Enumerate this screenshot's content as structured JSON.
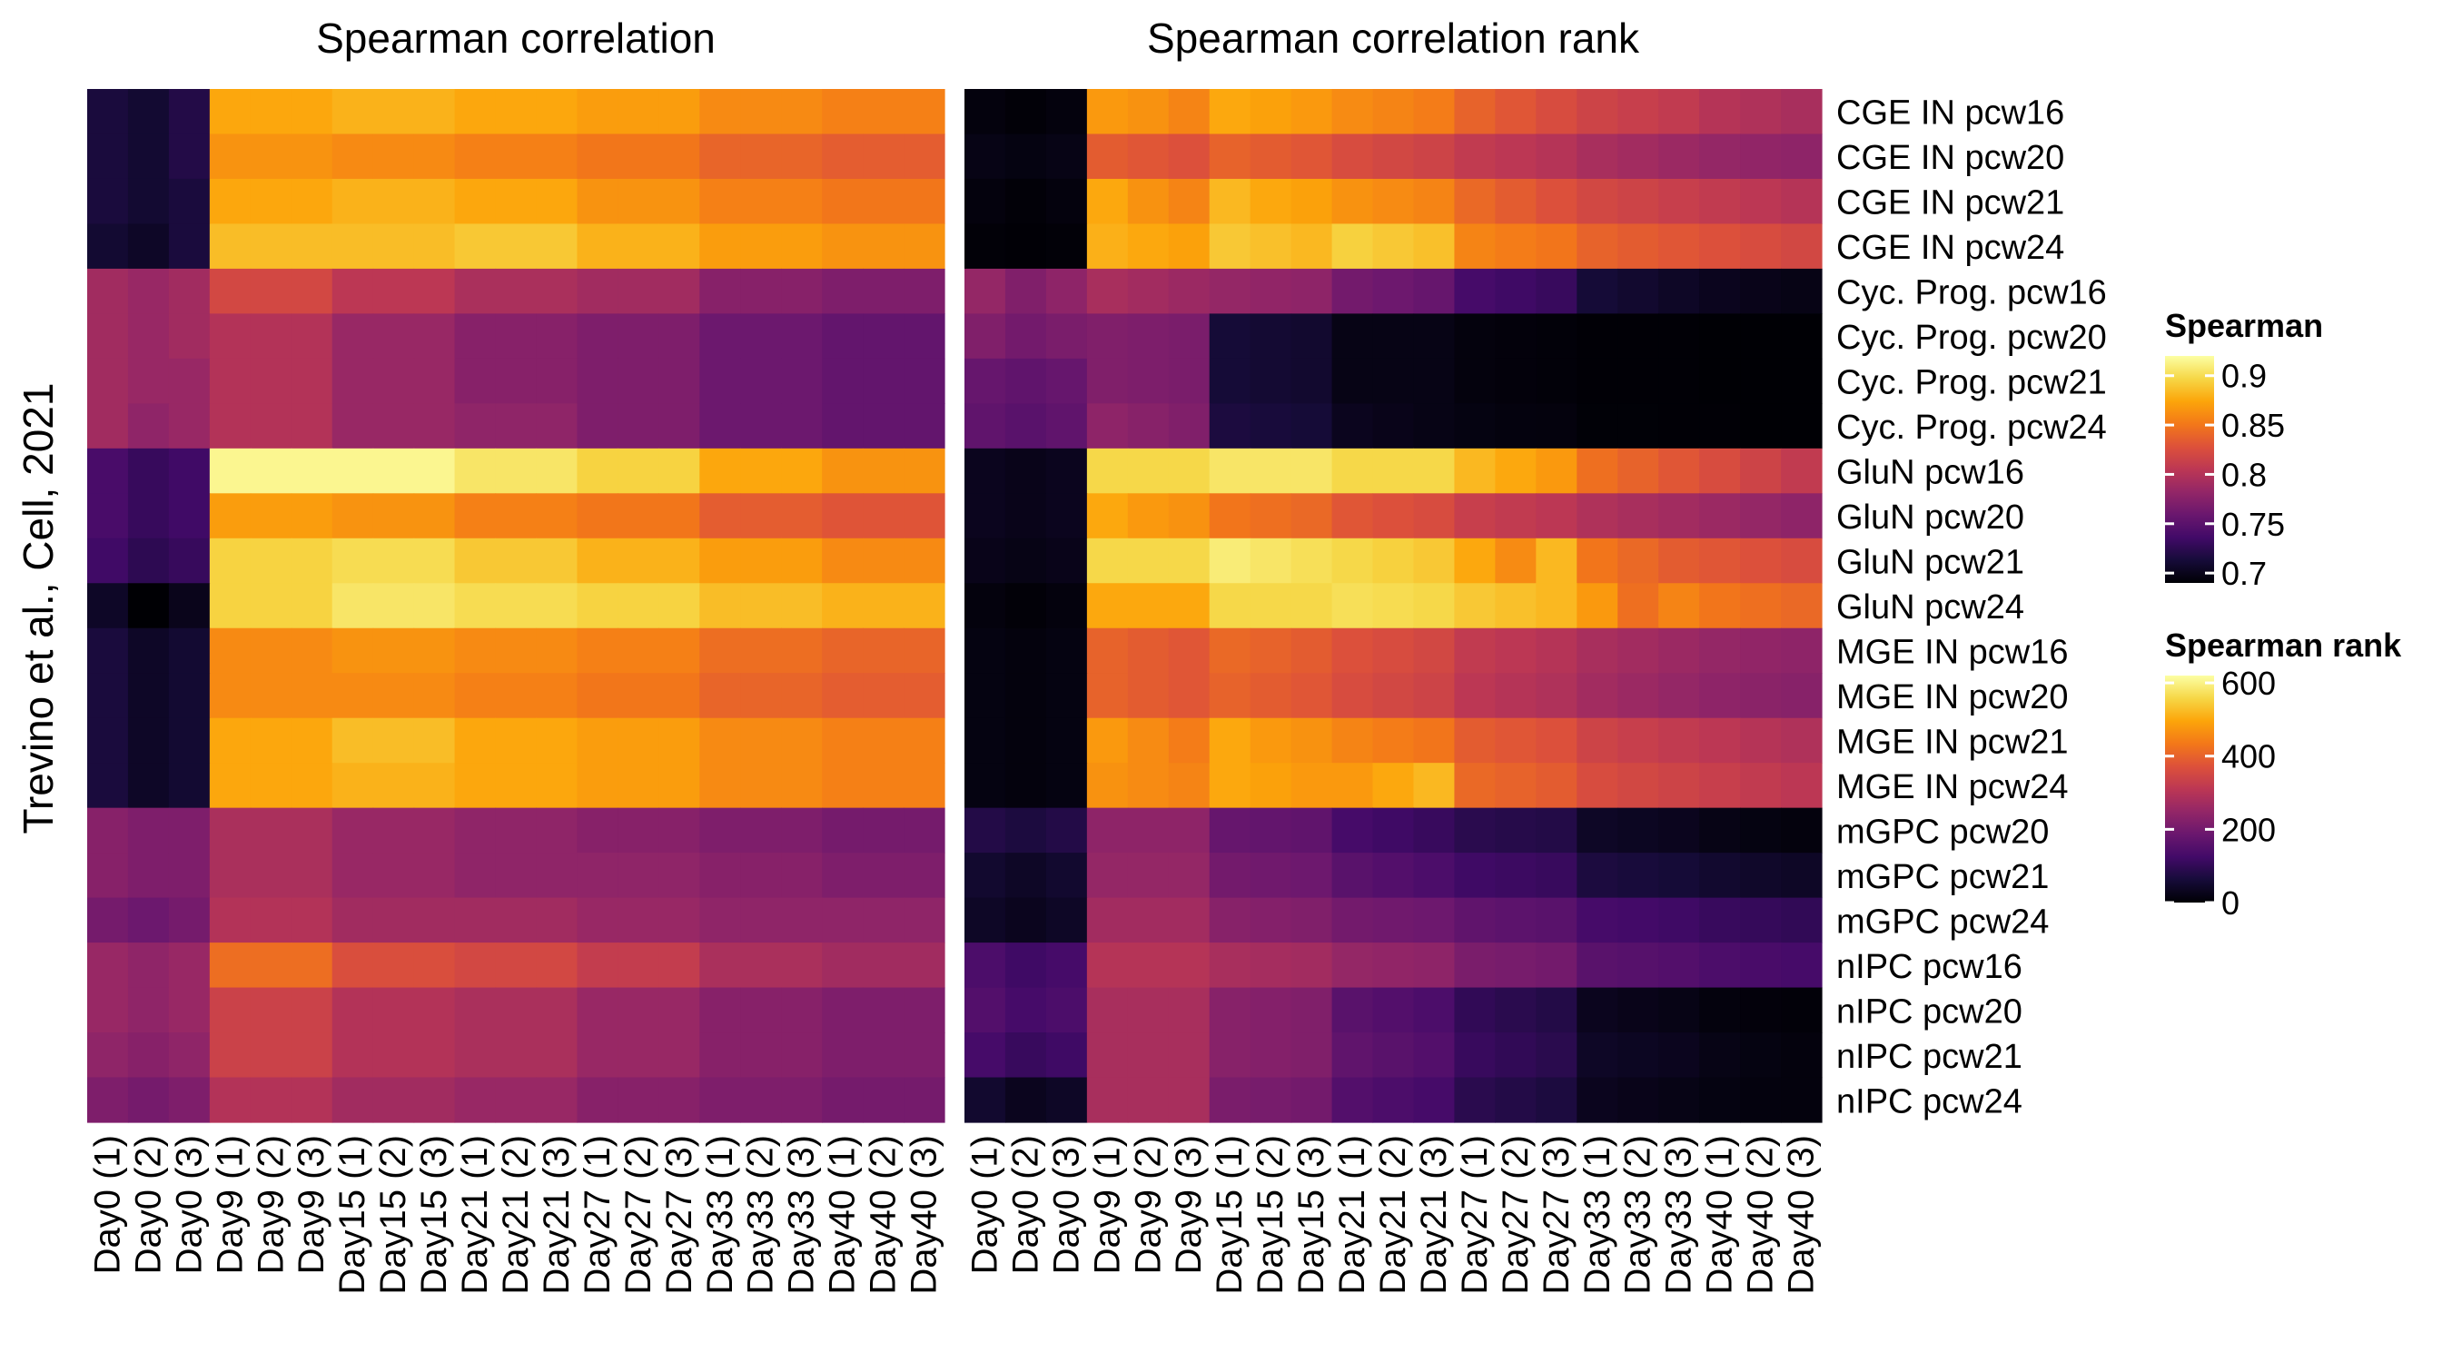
{
  "chart_data": {
    "type": "heatmap",
    "ylabel": "Trevino et al., Cell, 2021",
    "columns": [
      "Day0 (1)",
      "Day0 (2)",
      "Day0 (3)",
      "Day9 (1)",
      "Day9 (2)",
      "Day9 (3)",
      "Day15 (1)",
      "Day15 (2)",
      "Day15 (3)",
      "Day21 (1)",
      "Day21 (2)",
      "Day21 (3)",
      "Day27 (1)",
      "Day27 (2)",
      "Day27 (3)",
      "Day33 (1)",
      "Day33 (2)",
      "Day33 (3)",
      "Day40 (1)",
      "Day40 (2)",
      "Day40 (3)"
    ],
    "rows": [
      "CGE IN pcw16",
      "CGE IN pcw20",
      "CGE IN pcw21",
      "CGE IN pcw24",
      "Cyc. Prog. pcw16",
      "Cyc. Prog. pcw20",
      "Cyc. Prog. pcw21",
      "Cyc. Prog. pcw24",
      "GluN pcw16",
      "GluN pcw20",
      "GluN pcw21",
      "GluN pcw24",
      "MGE IN pcw16",
      "MGE IN pcw20",
      "MGE IN pcw21",
      "MGE IN pcw24",
      "mGPC pcw20",
      "mGPC pcw21",
      "mGPC pcw24",
      "nIPC pcw16",
      "nIPC pcw20",
      "nIPC pcw21",
      "nIPC pcw24"
    ],
    "panels": [
      {
        "title": "Spearman correlation",
        "legend_title": "Spearman",
        "range": [
          0.69,
          0.92
        ],
        "legend_ticks": [
          0.7,
          0.75,
          0.8,
          0.85,
          0.9
        ],
        "values": [
          [
            0.715,
            0.71,
            0.72,
            0.875,
            0.875,
            0.875,
            0.88,
            0.88,
            0.88,
            0.875,
            0.875,
            0.875,
            0.87,
            0.87,
            0.87,
            0.86,
            0.86,
            0.86,
            0.855,
            0.855,
            0.855
          ],
          [
            0.715,
            0.71,
            0.72,
            0.865,
            0.865,
            0.865,
            0.86,
            0.86,
            0.86,
            0.855,
            0.855,
            0.855,
            0.85,
            0.85,
            0.85,
            0.84,
            0.84,
            0.84,
            0.835,
            0.835,
            0.835
          ],
          [
            0.715,
            0.71,
            0.715,
            0.875,
            0.875,
            0.875,
            0.88,
            0.88,
            0.88,
            0.875,
            0.875,
            0.875,
            0.865,
            0.865,
            0.865,
            0.855,
            0.855,
            0.855,
            0.85,
            0.85,
            0.85
          ],
          [
            0.71,
            0.705,
            0.715,
            0.885,
            0.885,
            0.885,
            0.885,
            0.885,
            0.885,
            0.89,
            0.89,
            0.89,
            0.88,
            0.88,
            0.88,
            0.87,
            0.87,
            0.87,
            0.865,
            0.865,
            0.865
          ],
          [
            0.79,
            0.785,
            0.79,
            0.82,
            0.82,
            0.82,
            0.805,
            0.805,
            0.805,
            0.795,
            0.795,
            0.795,
            0.79,
            0.79,
            0.79,
            0.775,
            0.775,
            0.775,
            0.77,
            0.77,
            0.77
          ],
          [
            0.79,
            0.785,
            0.79,
            0.8,
            0.8,
            0.8,
            0.785,
            0.785,
            0.785,
            0.775,
            0.775,
            0.775,
            0.77,
            0.77,
            0.77,
            0.76,
            0.76,
            0.76,
            0.755,
            0.755,
            0.755
          ],
          [
            0.79,
            0.785,
            0.785,
            0.8,
            0.8,
            0.8,
            0.785,
            0.785,
            0.785,
            0.775,
            0.775,
            0.775,
            0.77,
            0.77,
            0.77,
            0.76,
            0.76,
            0.76,
            0.755,
            0.755,
            0.755
          ],
          [
            0.79,
            0.78,
            0.785,
            0.8,
            0.8,
            0.8,
            0.785,
            0.785,
            0.785,
            0.78,
            0.78,
            0.78,
            0.77,
            0.77,
            0.77,
            0.76,
            0.76,
            0.76,
            0.755,
            0.755,
            0.755
          ],
          [
            0.74,
            0.73,
            0.735,
            0.915,
            0.915,
            0.915,
            0.915,
            0.915,
            0.915,
            0.905,
            0.905,
            0.905,
            0.895,
            0.895,
            0.895,
            0.875,
            0.875,
            0.875,
            0.865,
            0.865,
            0.865
          ],
          [
            0.74,
            0.73,
            0.735,
            0.87,
            0.87,
            0.87,
            0.865,
            0.865,
            0.865,
            0.855,
            0.855,
            0.855,
            0.85,
            0.85,
            0.85,
            0.835,
            0.835,
            0.835,
            0.83,
            0.83,
            0.83
          ],
          [
            0.735,
            0.725,
            0.73,
            0.895,
            0.895,
            0.895,
            0.9,
            0.9,
            0.9,
            0.89,
            0.89,
            0.89,
            0.88,
            0.88,
            0.88,
            0.87,
            0.87,
            0.87,
            0.86,
            0.86,
            0.86
          ],
          [
            0.705,
            0.69,
            0.7,
            0.895,
            0.895,
            0.895,
            0.905,
            0.905,
            0.905,
            0.9,
            0.9,
            0.9,
            0.895,
            0.895,
            0.895,
            0.885,
            0.885,
            0.885,
            0.88,
            0.88,
            0.88
          ],
          [
            0.715,
            0.705,
            0.71,
            0.86,
            0.86,
            0.86,
            0.865,
            0.865,
            0.865,
            0.86,
            0.86,
            0.86,
            0.855,
            0.855,
            0.855,
            0.845,
            0.845,
            0.845,
            0.84,
            0.84,
            0.84
          ],
          [
            0.715,
            0.705,
            0.71,
            0.86,
            0.86,
            0.86,
            0.86,
            0.86,
            0.86,
            0.855,
            0.855,
            0.855,
            0.85,
            0.85,
            0.85,
            0.84,
            0.84,
            0.84,
            0.835,
            0.835,
            0.835
          ],
          [
            0.715,
            0.705,
            0.71,
            0.875,
            0.875,
            0.875,
            0.885,
            0.885,
            0.885,
            0.875,
            0.875,
            0.875,
            0.87,
            0.87,
            0.87,
            0.86,
            0.86,
            0.86,
            0.855,
            0.855,
            0.855
          ],
          [
            0.715,
            0.705,
            0.71,
            0.875,
            0.875,
            0.875,
            0.88,
            0.88,
            0.88,
            0.875,
            0.875,
            0.875,
            0.87,
            0.87,
            0.87,
            0.86,
            0.86,
            0.86,
            0.855,
            0.855,
            0.855
          ],
          [
            0.775,
            0.77,
            0.77,
            0.795,
            0.795,
            0.795,
            0.785,
            0.785,
            0.785,
            0.78,
            0.78,
            0.78,
            0.775,
            0.775,
            0.775,
            0.77,
            0.77,
            0.77,
            0.765,
            0.765,
            0.765
          ],
          [
            0.775,
            0.77,
            0.77,
            0.795,
            0.795,
            0.795,
            0.785,
            0.785,
            0.785,
            0.78,
            0.78,
            0.78,
            0.78,
            0.78,
            0.78,
            0.775,
            0.775,
            0.775,
            0.77,
            0.77,
            0.77
          ],
          [
            0.765,
            0.76,
            0.765,
            0.8,
            0.8,
            0.8,
            0.79,
            0.79,
            0.79,
            0.79,
            0.79,
            0.79,
            0.785,
            0.785,
            0.785,
            0.78,
            0.78,
            0.78,
            0.78,
            0.78,
            0.78
          ],
          [
            0.785,
            0.78,
            0.785,
            0.845,
            0.845,
            0.845,
            0.825,
            0.825,
            0.825,
            0.82,
            0.82,
            0.82,
            0.81,
            0.81,
            0.81,
            0.795,
            0.795,
            0.795,
            0.79,
            0.79,
            0.79
          ],
          [
            0.785,
            0.78,
            0.785,
            0.815,
            0.815,
            0.815,
            0.8,
            0.8,
            0.8,
            0.795,
            0.795,
            0.795,
            0.785,
            0.785,
            0.785,
            0.775,
            0.775,
            0.775,
            0.77,
            0.77,
            0.77
          ],
          [
            0.78,
            0.775,
            0.78,
            0.815,
            0.815,
            0.815,
            0.8,
            0.8,
            0.8,
            0.795,
            0.795,
            0.795,
            0.785,
            0.785,
            0.785,
            0.775,
            0.775,
            0.775,
            0.77,
            0.77,
            0.77
          ],
          [
            0.77,
            0.765,
            0.77,
            0.8,
            0.8,
            0.8,
            0.79,
            0.79,
            0.79,
            0.785,
            0.785,
            0.785,
            0.775,
            0.775,
            0.775,
            0.77,
            0.77,
            0.77,
            0.765,
            0.765,
            0.765
          ]
        ]
      },
      {
        "title": "Spearman correlation rank",
        "legend_title": "Spearman rank",
        "range": [
          0,
          620
        ],
        "legend_ticks": [
          0,
          200,
          400,
          600
        ],
        "values": [
          [
            10,
            5,
            10,
            480,
            470,
            450,
            500,
            490,
            480,
            460,
            450,
            440,
            400,
            380,
            360,
            340,
            330,
            320,
            300,
            290,
            280
          ],
          [
            20,
            15,
            20,
            390,
            380,
            370,
            400,
            390,
            380,
            360,
            350,
            340,
            320,
            310,
            300,
            280,
            270,
            260,
            250,
            245,
            240
          ],
          [
            10,
            5,
            10,
            500,
            470,
            450,
            520,
            500,
            490,
            470,
            460,
            450,
            410,
            390,
            370,
            350,
            340,
            330,
            320,
            310,
            300
          ],
          [
            5,
            2,
            5,
            510,
            500,
            490,
            540,
            530,
            520,
            550,
            540,
            530,
            450,
            440,
            430,
            400,
            390,
            380,
            370,
            360,
            350
          ],
          [
            250,
            220,
            240,
            280,
            270,
            260,
            250,
            245,
            240,
            200,
            190,
            180,
            130,
            120,
            110,
            60,
            50,
            40,
            30,
            25,
            20
          ],
          [
            220,
            200,
            210,
            220,
            215,
            210,
            60,
            55,
            50,
            20,
            20,
            20,
            10,
            8,
            6,
            2,
            2,
            2,
            1,
            1,
            1
          ],
          [
            180,
            170,
            180,
            220,
            215,
            210,
            60,
            55,
            50,
            20,
            20,
            20,
            10,
            8,
            6,
            2,
            2,
            2,
            1,
            1,
            1
          ],
          [
            170,
            160,
            170,
            240,
            230,
            220,
            70,
            65,
            60,
            30,
            25,
            20,
            15,
            12,
            10,
            4,
            3,
            2,
            2,
            1,
            1
          ],
          [
            30,
            25,
            30,
            560,
            560,
            560,
            580,
            580,
            580,
            560,
            560,
            560,
            520,
            500,
            480,
            420,
            400,
            380,
            360,
            340,
            320
          ],
          [
            30,
            25,
            30,
            500,
            480,
            470,
            430,
            420,
            410,
            380,
            370,
            360,
            330,
            320,
            310,
            290,
            280,
            270,
            260,
            250,
            240
          ],
          [
            25,
            20,
            25,
            560,
            560,
            560,
            590,
            580,
            570,
            560,
            550,
            540,
            500,
            460,
            520,
            430,
            410,
            390,
            380,
            370,
            360
          ],
          [
            10,
            5,
            10,
            500,
            500,
            500,
            560,
            560,
            560,
            570,
            565,
            560,
            540,
            530,
            520,
            480,
            420,
            450,
            430,
            420,
            410
          ],
          [
            15,
            10,
            15,
            400,
            390,
            380,
            410,
            400,
            390,
            370,
            360,
            350,
            320,
            310,
            300,
            280,
            270,
            260,
            250,
            245,
            240
          ],
          [
            15,
            10,
            15,
            400,
            390,
            380,
            400,
            390,
            380,
            360,
            350,
            340,
            310,
            300,
            290,
            270,
            260,
            250,
            240,
            235,
            230
          ],
          [
            15,
            10,
            15,
            480,
            460,
            440,
            500,
            480,
            470,
            450,
            440,
            430,
            390,
            380,
            370,
            340,
            330,
            320,
            310,
            300,
            290
          ],
          [
            15,
            10,
            15,
            470,
            460,
            450,
            500,
            490,
            480,
            480,
            500,
            520,
            410,
            400,
            390,
            360,
            350,
            340,
            330,
            320,
            310
          ],
          [
            80,
            70,
            80,
            240,
            240,
            240,
            180,
            175,
            170,
            130,
            120,
            110,
            90,
            85,
            80,
            40,
            35,
            30,
            20,
            15,
            10
          ],
          [
            50,
            40,
            50,
            250,
            250,
            250,
            200,
            195,
            190,
            160,
            150,
            140,
            120,
            115,
            110,
            70,
            65,
            60,
            50,
            45,
            40
          ],
          [
            40,
            30,
            40,
            270,
            270,
            270,
            230,
            225,
            220,
            200,
            195,
            190,
            170,
            165,
            160,
            130,
            125,
            120,
            110,
            105,
            100
          ],
          [
            140,
            120,
            130,
            300,
            300,
            300,
            280,
            275,
            270,
            250,
            245,
            240,
            210,
            205,
            200,
            160,
            155,
            150,
            140,
            135,
            130
          ],
          [
            150,
            130,
            140,
            280,
            280,
            280,
            230,
            225,
            220,
            160,
            150,
            140,
            100,
            90,
            80,
            30,
            25,
            20,
            10,
            8,
            6
          ],
          [
            130,
            110,
            120,
            280,
            280,
            280,
            230,
            225,
            220,
            170,
            160,
            150,
            110,
            100,
            90,
            40,
            35,
            30,
            20,
            15,
            10
          ],
          [
            50,
            30,
            40,
            280,
            280,
            280,
            210,
            205,
            200,
            150,
            140,
            130,
            90,
            80,
            70,
            30,
            25,
            20,
            15,
            12,
            10
          ]
        ]
      }
    ]
  }
}
